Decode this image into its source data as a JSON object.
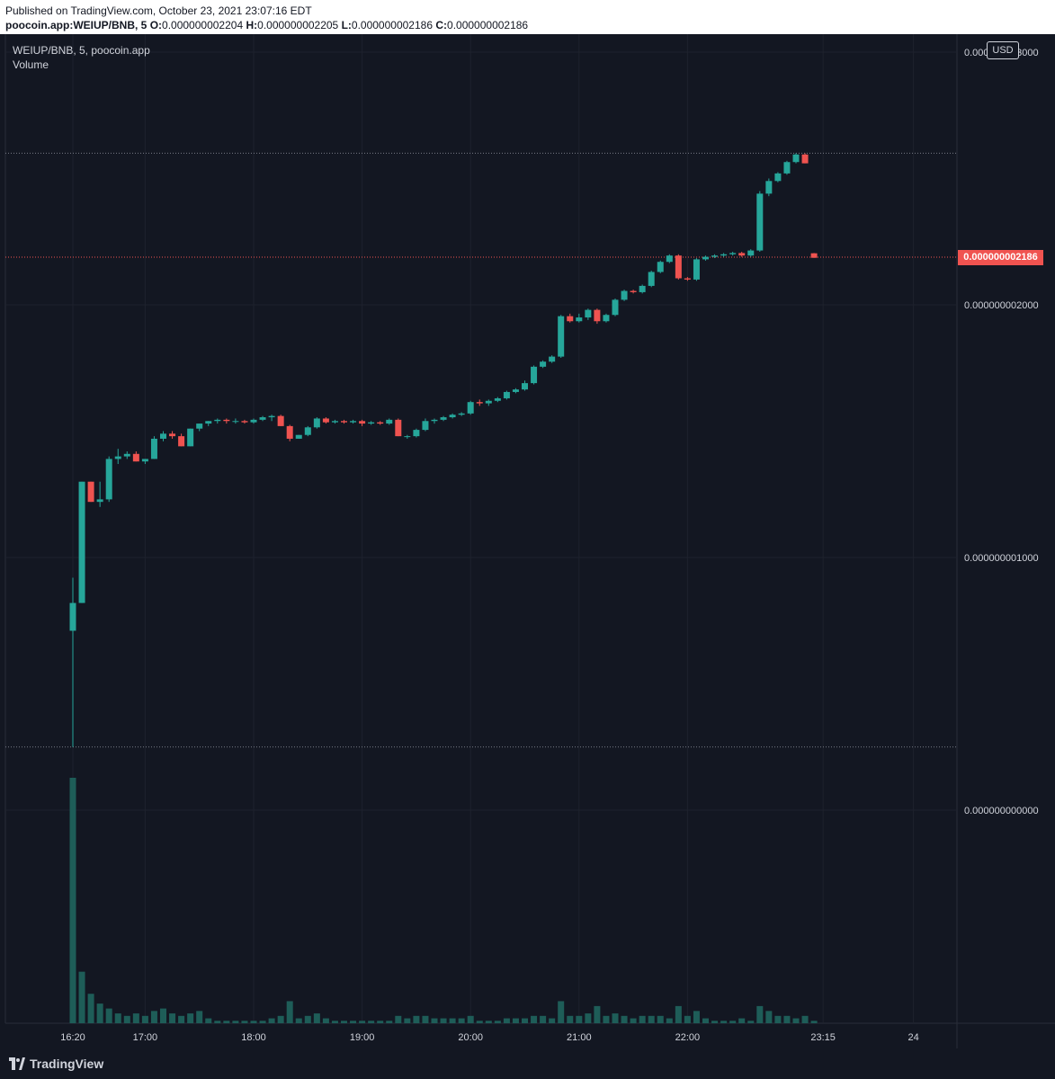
{
  "header": {
    "published": "Published on TradingView.com, October 23, 2021 23:07:16 EDT",
    "symbol": "poocoin.app:WEIUP/BNB, 5",
    "o_label": "O:",
    "o_value": "0.000000002204",
    "h_label": "H:",
    "h_value": "0.000000002205",
    "l_label": "L:",
    "l_value": "0.000000002186",
    "c_label": "C:",
    "c_value": "0.000000002186"
  },
  "legend": {
    "symbol_line": "WEIUP/BNB, 5, poocoin.app",
    "volume_label": "Volume"
  },
  "currency_button": "USD",
  "last_price": "0.000000002186",
  "footer": {
    "brand": "TradingView",
    "logo_icon": "tradingview-logo-icon"
  },
  "colors": {
    "background": "#131722",
    "up": "#26a69a",
    "down": "#ef5350",
    "volume": "#1e5d58",
    "axis_text": "#d1d4dc",
    "grid": "#1e222d"
  },
  "chart_data": {
    "type": "candlestick",
    "interval": "5",
    "y_ticks": [
      "0.000000003000",
      "0.000000002000",
      "0.000000001000",
      "0.000000000000"
    ],
    "x_ticks": [
      "16:20",
      "17:00",
      "18:00",
      "19:00",
      "20:00",
      "21:00",
      "22:00",
      "23:15",
      "24"
    ],
    "candles": [
      {
        "t": "16:20",
        "o": 7.1e-10,
        "h": 9.2e-10,
        "l": 2.5e-10,
        "c": 8.2e-10,
        "v": 100
      },
      {
        "t": "16:25",
        "o": 8.2e-10,
        "h": 1.3e-09,
        "l": 8.2e-10,
        "c": 1.3e-09,
        "v": 21
      },
      {
        "t": "16:30",
        "o": 1.3e-09,
        "h": 1.3e-09,
        "l": 1.22e-09,
        "c": 1.22e-09,
        "v": 12
      },
      {
        "t": "16:35",
        "o": 1.22e-09,
        "h": 1.3e-09,
        "l": 1.2e-09,
        "c": 1.23e-09,
        "v": 8
      },
      {
        "t": "16:40",
        "o": 1.23e-09,
        "h": 1.4e-09,
        "l": 1.22e-09,
        "c": 1.39e-09,
        "v": 6
      },
      {
        "t": "16:45",
        "o": 1.39e-09,
        "h": 1.43e-09,
        "l": 1.37e-09,
        "c": 1.4e-09,
        "v": 4
      },
      {
        "t": "16:50",
        "o": 1.4e-09,
        "h": 1.42e-09,
        "l": 1.39e-09,
        "c": 1.41e-09,
        "v": 3
      },
      {
        "t": "16:55",
        "o": 1.41e-09,
        "h": 1.42e-09,
        "l": 1.38e-09,
        "c": 1.38e-09,
        "v": 4
      },
      {
        "t": "17:00",
        "o": 1.38e-09,
        "h": 1.39e-09,
        "l": 1.37e-09,
        "c": 1.39e-09,
        "v": 3
      },
      {
        "t": "17:05",
        "o": 1.39e-09,
        "h": 1.48e-09,
        "l": 1.39e-09,
        "c": 1.47e-09,
        "v": 5
      },
      {
        "t": "17:10",
        "o": 1.47e-09,
        "h": 1.5e-09,
        "l": 1.46e-09,
        "c": 1.49e-09,
        "v": 6
      },
      {
        "t": "17:15",
        "o": 1.49e-09,
        "h": 1.5e-09,
        "l": 1.47e-09,
        "c": 1.48e-09,
        "v": 4
      },
      {
        "t": "17:20",
        "o": 1.48e-09,
        "h": 1.49e-09,
        "l": 1.44e-09,
        "c": 1.44e-09,
        "v": 3
      },
      {
        "t": "17:25",
        "o": 1.44e-09,
        "h": 1.51e-09,
        "l": 1.44e-09,
        "c": 1.51e-09,
        "v": 4
      },
      {
        "t": "17:30",
        "o": 1.51e-09,
        "h": 1.53e-09,
        "l": 1.5e-09,
        "c": 1.53e-09,
        "v": 5
      },
      {
        "t": "17:35",
        "o": 1.53e-09,
        "h": 1.54e-09,
        "l": 1.52e-09,
        "c": 1.54e-09,
        "v": 2
      },
      {
        "t": "17:40",
        "o": 1.54e-09,
        "h": 1.55e-09,
        "l": 1.53e-09,
        "c": 1.545e-09,
        "v": 1
      },
      {
        "t": "17:45",
        "o": 1.545e-09,
        "h": 1.55e-09,
        "l": 1.53e-09,
        "c": 1.54e-09,
        "v": 1
      },
      {
        "t": "17:50",
        "o": 1.54e-09,
        "h": 1.55e-09,
        "l": 1.53e-09,
        "c": 1.54e-09,
        "v": 1
      },
      {
        "t": "17:55",
        "o": 1.54e-09,
        "h": 1.545e-09,
        "l": 1.53e-09,
        "c": 1.535e-09,
        "v": 1
      },
      {
        "t": "18:00",
        "o": 1.535e-09,
        "h": 1.55e-09,
        "l": 1.53e-09,
        "c": 1.545e-09,
        "v": 1
      },
      {
        "t": "18:05",
        "o": 1.545e-09,
        "h": 1.56e-09,
        "l": 1.54e-09,
        "c": 1.555e-09,
        "v": 1
      },
      {
        "t": "18:10",
        "o": 1.555e-09,
        "h": 1.565e-09,
        "l": 1.54e-09,
        "c": 1.56e-09,
        "v": 2
      },
      {
        "t": "18:15",
        "o": 1.56e-09,
        "h": 1.565e-09,
        "l": 1.52e-09,
        "c": 1.52e-09,
        "v": 3
      },
      {
        "t": "18:20",
        "o": 1.52e-09,
        "h": 1.525e-09,
        "l": 1.46e-09,
        "c": 1.47e-09,
        "v": 9
      },
      {
        "t": "18:25",
        "o": 1.47e-09,
        "h": 1.485e-09,
        "l": 1.47e-09,
        "c": 1.485e-09,
        "v": 2
      },
      {
        "t": "18:30",
        "o": 1.485e-09,
        "h": 1.52e-09,
        "l": 1.48e-09,
        "c": 1.515e-09,
        "v": 3
      },
      {
        "t": "18:35",
        "o": 1.515e-09,
        "h": 1.555e-09,
        "l": 1.51e-09,
        "c": 1.55e-09,
        "v": 4
      },
      {
        "t": "18:40",
        "o": 1.55e-09,
        "h": 1.555e-09,
        "l": 1.53e-09,
        "c": 1.535e-09,
        "v": 2
      },
      {
        "t": "18:45",
        "o": 1.535e-09,
        "h": 1.545e-09,
        "l": 1.53e-09,
        "c": 1.54e-09,
        "v": 1
      },
      {
        "t": "18:50",
        "o": 1.54e-09,
        "h": 1.545e-09,
        "l": 1.53e-09,
        "c": 1.535e-09,
        "v": 1
      },
      {
        "t": "18:55",
        "o": 1.535e-09,
        "h": 1.545e-09,
        "l": 1.53e-09,
        "c": 1.54e-09,
        "v": 1
      },
      {
        "t": "19:00",
        "o": 1.54e-09,
        "h": 1.545e-09,
        "l": 1.52e-09,
        "c": 1.53e-09,
        "v": 1
      },
      {
        "t": "19:05",
        "o": 1.53e-09,
        "h": 1.54e-09,
        "l": 1.525e-09,
        "c": 1.535e-09,
        "v": 1
      },
      {
        "t": "19:10",
        "o": 1.535e-09,
        "h": 1.54e-09,
        "l": 1.525e-09,
        "c": 1.53e-09,
        "v": 1
      },
      {
        "t": "19:15",
        "o": 1.53e-09,
        "h": 1.55e-09,
        "l": 1.525e-09,
        "c": 1.545e-09,
        "v": 1
      },
      {
        "t": "19:20",
        "o": 1.545e-09,
        "h": 1.55e-09,
        "l": 1.48e-09,
        "c": 1.48e-09,
        "v": 3
      },
      {
        "t": "19:25",
        "o": 1.48e-09,
        "h": 1.485e-09,
        "l": 1.47e-09,
        "c": 1.48e-09,
        "v": 2
      },
      {
        "t": "19:30",
        "o": 1.48e-09,
        "h": 1.51e-09,
        "l": 1.475e-09,
        "c": 1.505e-09,
        "v": 3
      },
      {
        "t": "19:35",
        "o": 1.505e-09,
        "h": 1.55e-09,
        "l": 1.5e-09,
        "c": 1.54e-09,
        "v": 3
      },
      {
        "t": "19:40",
        "o": 1.54e-09,
        "h": 1.55e-09,
        "l": 1.53e-09,
        "c": 1.545e-09,
        "v": 2
      },
      {
        "t": "19:45",
        "o": 1.545e-09,
        "h": 1.56e-09,
        "l": 1.54e-09,
        "c": 1.555e-09,
        "v": 2
      },
      {
        "t": "19:50",
        "o": 1.555e-09,
        "h": 1.57e-09,
        "l": 1.55e-09,
        "c": 1.565e-09,
        "v": 2
      },
      {
        "t": "19:55",
        "o": 1.565e-09,
        "h": 1.575e-09,
        "l": 1.56e-09,
        "c": 1.57e-09,
        "v": 2
      },
      {
        "t": "20:00",
        "o": 1.57e-09,
        "h": 1.62e-09,
        "l": 1.565e-09,
        "c": 1.615e-09,
        "v": 3
      },
      {
        "t": "20:05",
        "o": 1.615e-09,
        "h": 1.625e-09,
        "l": 1.6e-09,
        "c": 1.61e-09,
        "v": 1
      },
      {
        "t": "20:10",
        "o": 1.61e-09,
        "h": 1.625e-09,
        "l": 1.6e-09,
        "c": 1.62e-09,
        "v": 1
      },
      {
        "t": "20:15",
        "o": 1.62e-09,
        "h": 1.635e-09,
        "l": 1.615e-09,
        "c": 1.63e-09,
        "v": 1
      },
      {
        "t": "20:20",
        "o": 1.63e-09,
        "h": 1.66e-09,
        "l": 1.625e-09,
        "c": 1.655e-09,
        "v": 2
      },
      {
        "t": "20:25",
        "o": 1.655e-09,
        "h": 1.67e-09,
        "l": 1.65e-09,
        "c": 1.665e-09,
        "v": 2
      },
      {
        "t": "20:30",
        "o": 1.665e-09,
        "h": 1.7e-09,
        "l": 1.66e-09,
        "c": 1.69e-09,
        "v": 2
      },
      {
        "t": "20:35",
        "o": 1.69e-09,
        "h": 1.76e-09,
        "l": 1.685e-09,
        "c": 1.755e-09,
        "v": 3
      },
      {
        "t": "20:40",
        "o": 1.755e-09,
        "h": 1.78e-09,
        "l": 1.75e-09,
        "c": 1.775e-09,
        "v": 3
      },
      {
        "t": "20:45",
        "o": 1.775e-09,
        "h": 1.8e-09,
        "l": 1.77e-09,
        "c": 1.795e-09,
        "v": 2
      },
      {
        "t": "20:50",
        "o": 1.795e-09,
        "h": 1.96e-09,
        "l": 1.79e-09,
        "c": 1.955e-09,
        "v": 9
      },
      {
        "t": "20:55",
        "o": 1.955e-09,
        "h": 1.965e-09,
        "l": 1.93e-09,
        "c": 1.935e-09,
        "v": 3
      },
      {
        "t": "21:00",
        "o": 1.935e-09,
        "h": 1.965e-09,
        "l": 1.93e-09,
        "c": 1.95e-09,
        "v": 3
      },
      {
        "t": "21:05",
        "o": 1.95e-09,
        "h": 1.985e-09,
        "l": 1.94e-09,
        "c": 1.98e-09,
        "v": 4
      },
      {
        "t": "21:10",
        "o": 1.98e-09,
        "h": 1.985e-09,
        "l": 1.925e-09,
        "c": 1.935e-09,
        "v": 7
      },
      {
        "t": "21:15",
        "o": 1.935e-09,
        "h": 1.965e-09,
        "l": 1.93e-09,
        "c": 1.96e-09,
        "v": 3
      },
      {
        "t": "21:20",
        "o": 1.96e-09,
        "h": 2.025e-09,
        "l": 1.955e-09,
        "c": 2.02e-09,
        "v": 4
      },
      {
        "t": "21:25",
        "o": 2.02e-09,
        "h": 2.06e-09,
        "l": 2.015e-09,
        "c": 2.055e-09,
        "v": 3
      },
      {
        "t": "21:30",
        "o": 2.055e-09,
        "h": 2.06e-09,
        "l": 2.045e-09,
        "c": 2.05e-09,
        "v": 2
      },
      {
        "t": "21:35",
        "o": 2.05e-09,
        "h": 2.08e-09,
        "l": 2.045e-09,
        "c": 2.075e-09,
        "v": 3
      },
      {
        "t": "21:40",
        "o": 2.075e-09,
        "h": 2.135e-09,
        "l": 2.07e-09,
        "c": 2.13e-09,
        "v": 3
      },
      {
        "t": "21:45",
        "o": 2.13e-09,
        "h": 2.175e-09,
        "l": 2.125e-09,
        "c": 2.17e-09,
        "v": 3
      },
      {
        "t": "21:50",
        "o": 2.17e-09,
        "h": 2.2e-09,
        "l": 2.165e-09,
        "c": 2.195e-09,
        "v": 2
      },
      {
        "t": "21:55",
        "o": 2.195e-09,
        "h": 2.2e-09,
        "l": 2.1e-09,
        "c": 2.105e-09,
        "v": 7
      },
      {
        "t": "22:00",
        "o": 2.105e-09,
        "h": 2.11e-09,
        "l": 2.095e-09,
        "c": 2.1e-09,
        "v": 3
      },
      {
        "t": "22:05",
        "o": 2.1e-09,
        "h": 2.185e-09,
        "l": 2.095e-09,
        "c": 2.18e-09,
        "v": 5
      },
      {
        "t": "22:10",
        "o": 2.18e-09,
        "h": 2.195e-09,
        "l": 2.175e-09,
        "c": 2.19e-09,
        "v": 2
      },
      {
        "t": "22:15",
        "o": 2.19e-09,
        "h": 2.2e-09,
        "l": 2.185e-09,
        "c": 2.195e-09,
        "v": 1
      },
      {
        "t": "22:20",
        "o": 2.195e-09,
        "h": 2.205e-09,
        "l": 2.19e-09,
        "c": 2.2e-09,
        "v": 1
      },
      {
        "t": "22:25",
        "o": 2.2e-09,
        "h": 2.21e-09,
        "l": 2.195e-09,
        "c": 2.205e-09,
        "v": 1
      },
      {
        "t": "22:30",
        "o": 2.205e-09,
        "h": 2.21e-09,
        "l": 2.19e-09,
        "c": 2.195e-09,
        "v": 2
      },
      {
        "t": "22:35",
        "o": 2.195e-09,
        "h": 2.22e-09,
        "l": 2.19e-09,
        "c": 2.215e-09,
        "v": 1
      },
      {
        "t": "22:40",
        "o": 2.215e-09,
        "h": 2.45e-09,
        "l": 2.21e-09,
        "c": 2.44e-09,
        "v": 7
      },
      {
        "t": "22:45",
        "o": 2.44e-09,
        "h": 2.5e-09,
        "l": 2.43e-09,
        "c": 2.49e-09,
        "v": 5
      },
      {
        "t": "22:50",
        "o": 2.49e-09,
        "h": 2.525e-09,
        "l": 2.485e-09,
        "c": 2.52e-09,
        "v": 3
      },
      {
        "t": "22:55",
        "o": 2.52e-09,
        "h": 2.57e-09,
        "l": 2.515e-09,
        "c": 2.565e-09,
        "v": 3
      },
      {
        "t": "23:00",
        "o": 2.565e-09,
        "h": 2.6e-09,
        "l": 2.56e-09,
        "c": 2.595e-09,
        "v": 2
      },
      {
        "t": "23:05",
        "o": 2.595e-09,
        "h": 2.6e-09,
        "l": 2.56e-09,
        "c": 2.56e-09,
        "v": 3
      },
      {
        "t": "23:10",
        "o": 2.204e-09,
        "h": 2.205e-09,
        "l": 2.186e-09,
        "c": 2.186e-09,
        "v": 1
      }
    ]
  }
}
